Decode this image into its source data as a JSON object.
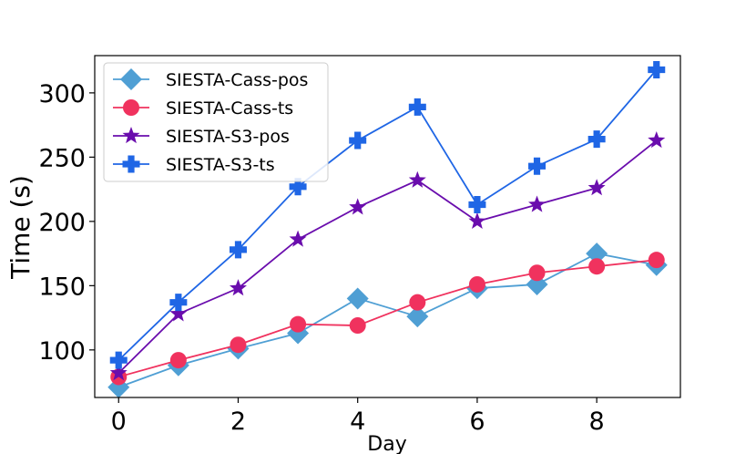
{
  "chart_data": {
    "type": "line",
    "title": "",
    "xlabel": "Day",
    "ylabel": "Time (s)",
    "xlim": [
      -0.4,
      9.4
    ],
    "ylim": [
      63,
      329
    ],
    "xticks": [
      0,
      2,
      4,
      6,
      8
    ],
    "yticks": [
      100,
      150,
      200,
      250,
      300
    ],
    "grid": false,
    "legend_position": "top-left",
    "x": [
      0,
      1,
      2,
      3,
      4,
      5,
      6,
      7,
      8,
      9
    ],
    "series": [
      {
        "name": "SIESTA-Cass-pos",
        "color": "#4F9FD4",
        "marker": "diamond",
        "values": [
          71,
          88,
          101,
          113,
          140,
          126,
          148,
          151,
          175,
          166
        ]
      },
      {
        "name": "SIESTA-Cass-ts",
        "color": "#F0325E",
        "marker": "circle",
        "values": [
          79,
          92,
          104,
          120,
          119,
          137,
          151,
          160,
          165,
          170
        ]
      },
      {
        "name": "SIESTA-S3-pos",
        "color": "#6A0DAD",
        "marker": "star",
        "values": [
          82,
          128,
          148,
          186,
          211,
          232,
          200,
          213,
          226,
          263
        ]
      },
      {
        "name": "SIESTA-S3-ts",
        "color": "#1F66E5",
        "marker": "plus",
        "values": [
          92,
          137,
          178,
          227,
          263,
          289,
          213,
          243,
          264,
          318
        ]
      }
    ]
  }
}
